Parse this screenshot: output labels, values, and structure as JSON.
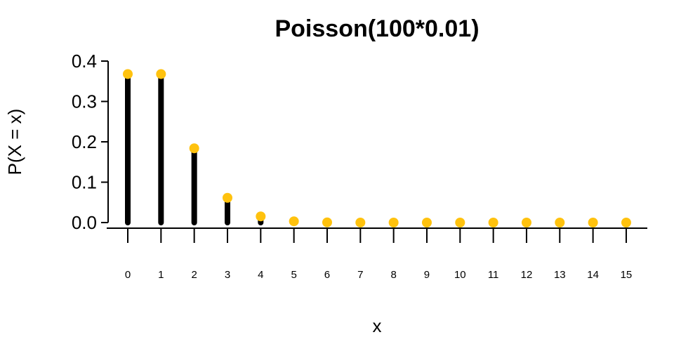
{
  "chart_data": {
    "type": "bar",
    "title": "Poisson(100*0.01)",
    "xlabel": "x",
    "ylabel": "P(X = x)",
    "ylim": [
      0,
      0.4
    ],
    "yticks": [
      "0.0",
      "0.1",
      "0.2",
      "0.3",
      "0.4"
    ],
    "x": [
      0,
      1,
      2,
      3,
      4,
      5,
      6,
      7,
      8,
      9,
      10,
      11,
      12,
      13,
      14,
      15
    ],
    "xtick_labels": [
      "0",
      "1",
      "2",
      "3",
      "4",
      "5",
      "6",
      "7",
      "8",
      "9",
      "10",
      "11",
      "12",
      "13",
      "14",
      "15"
    ],
    "values": [
      0.3679,
      0.3679,
      0.1839,
      0.0613,
      0.0153,
      0.0031,
      0.0005,
      0.0001,
      0.0,
      0.0,
      0.0,
      0.0,
      0.0,
      0.0,
      0.0,
      0.0
    ],
    "bar_color": "#000000",
    "point_color": "#FFC20E",
    "grid": false
  }
}
